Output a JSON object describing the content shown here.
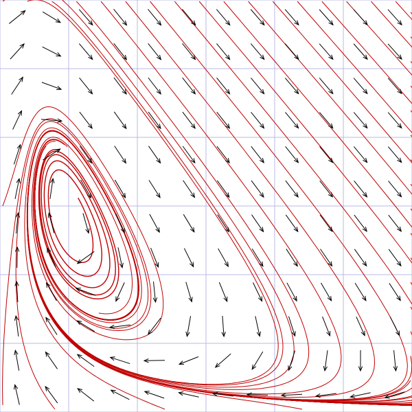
{
  "figure": {
    "kind": "phase-portrait",
    "grid": true,
    "grid_lines": 6,
    "arrow_columns": 12,
    "arrow_rows": 12,
    "streamline_count": 34,
    "limit_cycle": true,
    "colors": {
      "background": "#ffffff",
      "grid": "#b8b8e6",
      "trajectory": "#c00000",
      "vector": "#000000"
    }
  }
}
